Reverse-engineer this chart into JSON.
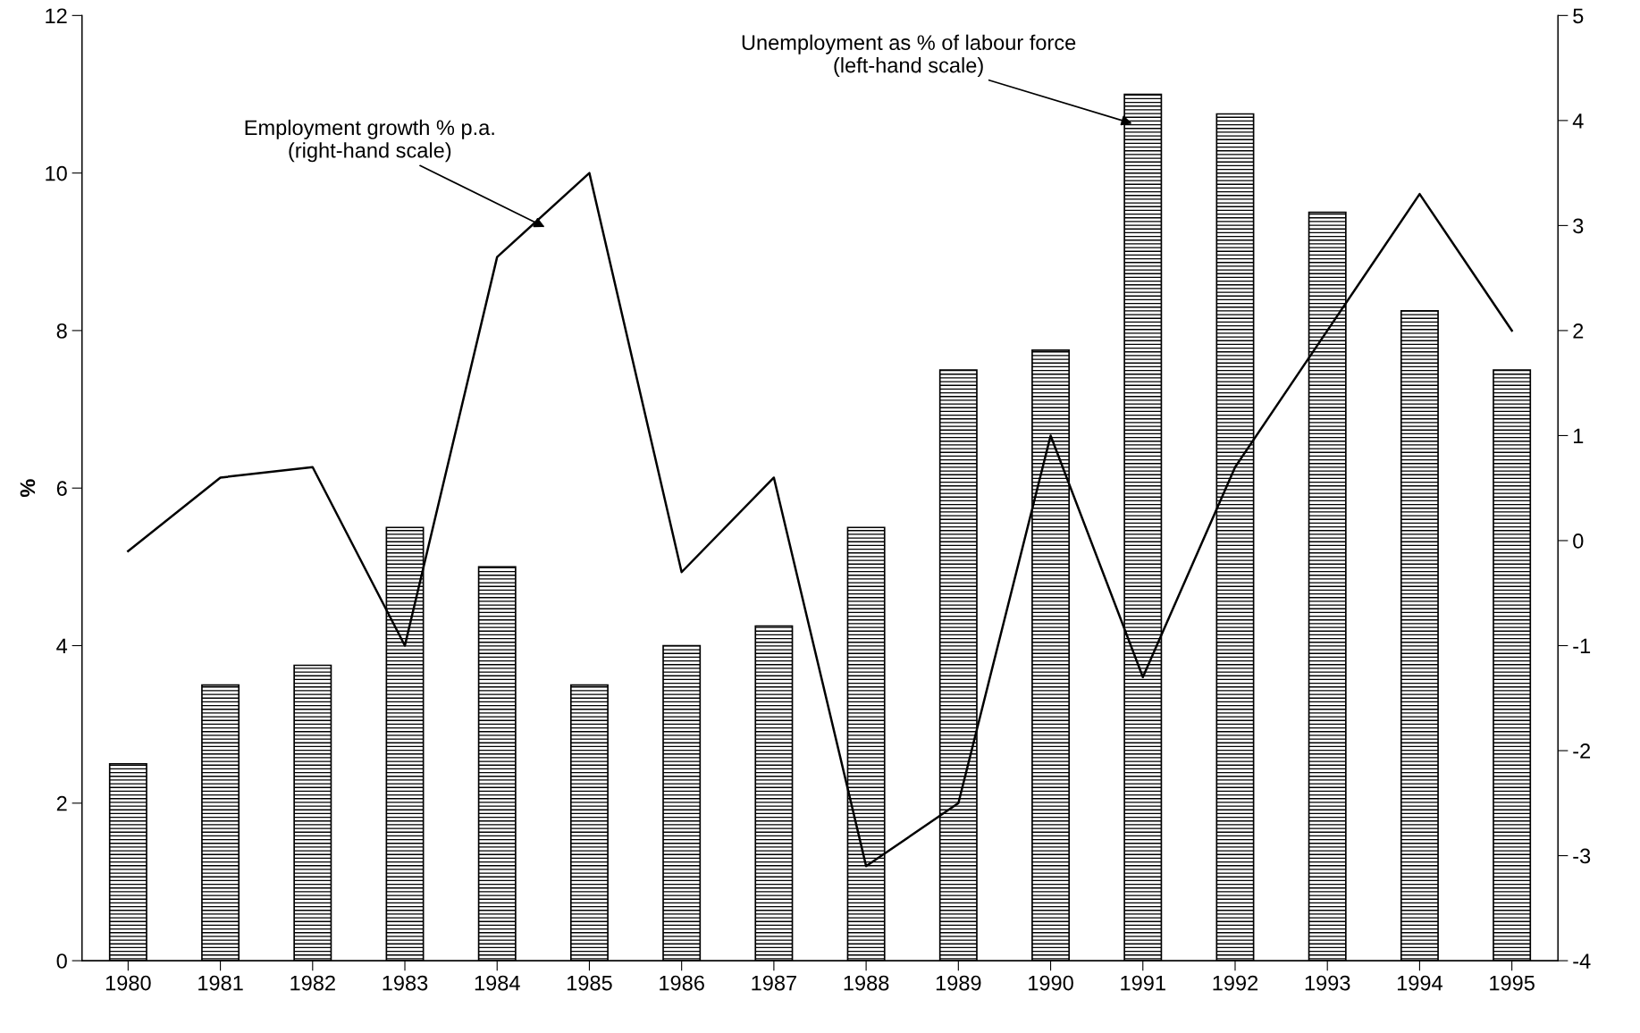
{
  "chart_data": {
    "type": "bar",
    "ylabel": "%",
    "categories": [
      "1980",
      "1981",
      "1982",
      "1983",
      "1984",
      "1985",
      "1986",
      "1987",
      "1988",
      "1989",
      "1990",
      "1991",
      "1992",
      "1993",
      "1994",
      "1995"
    ],
    "series": [
      {
        "color": "#000000",
        "values": [
          2.5,
          3.5,
          3.75,
          5.5,
          5.0,
          3.5,
          4.0,
          4.25,
          5.5,
          7.5,
          7.75,
          11.0,
          10.75,
          9.5,
          8.25,
          7.5
        ]
      },
      {
        "type": "line",
        "axis": "y2",
        "color": "#000000",
        "values": [
          -0.1,
          0.6,
          0.7,
          -1.0,
          2.7,
          3.5,
          -0.3,
          0.6,
          -3.1,
          -2.5,
          1.0,
          -1.3,
          0.7,
          2.0,
          3.3,
          2.0
        ]
      }
    ],
    "ylim": [
      0,
      12
    ],
    "yticks": [
      0,
      2,
      4,
      6,
      8,
      10,
      12
    ],
    "y2lim": [
      -4,
      5
    ],
    "y2ticks": [
      -4,
      -3,
      -2,
      -1,
      0,
      1,
      2,
      3,
      4,
      5
    ],
    "annotations": [
      "Employment growth % p.a.\n(right-hand scale)",
      "Unemployment as % of labour force\n(left-hand scale)"
    ],
    "grid": false,
    "legend": false,
    "marker": "none",
    "line_style": "solid"
  }
}
